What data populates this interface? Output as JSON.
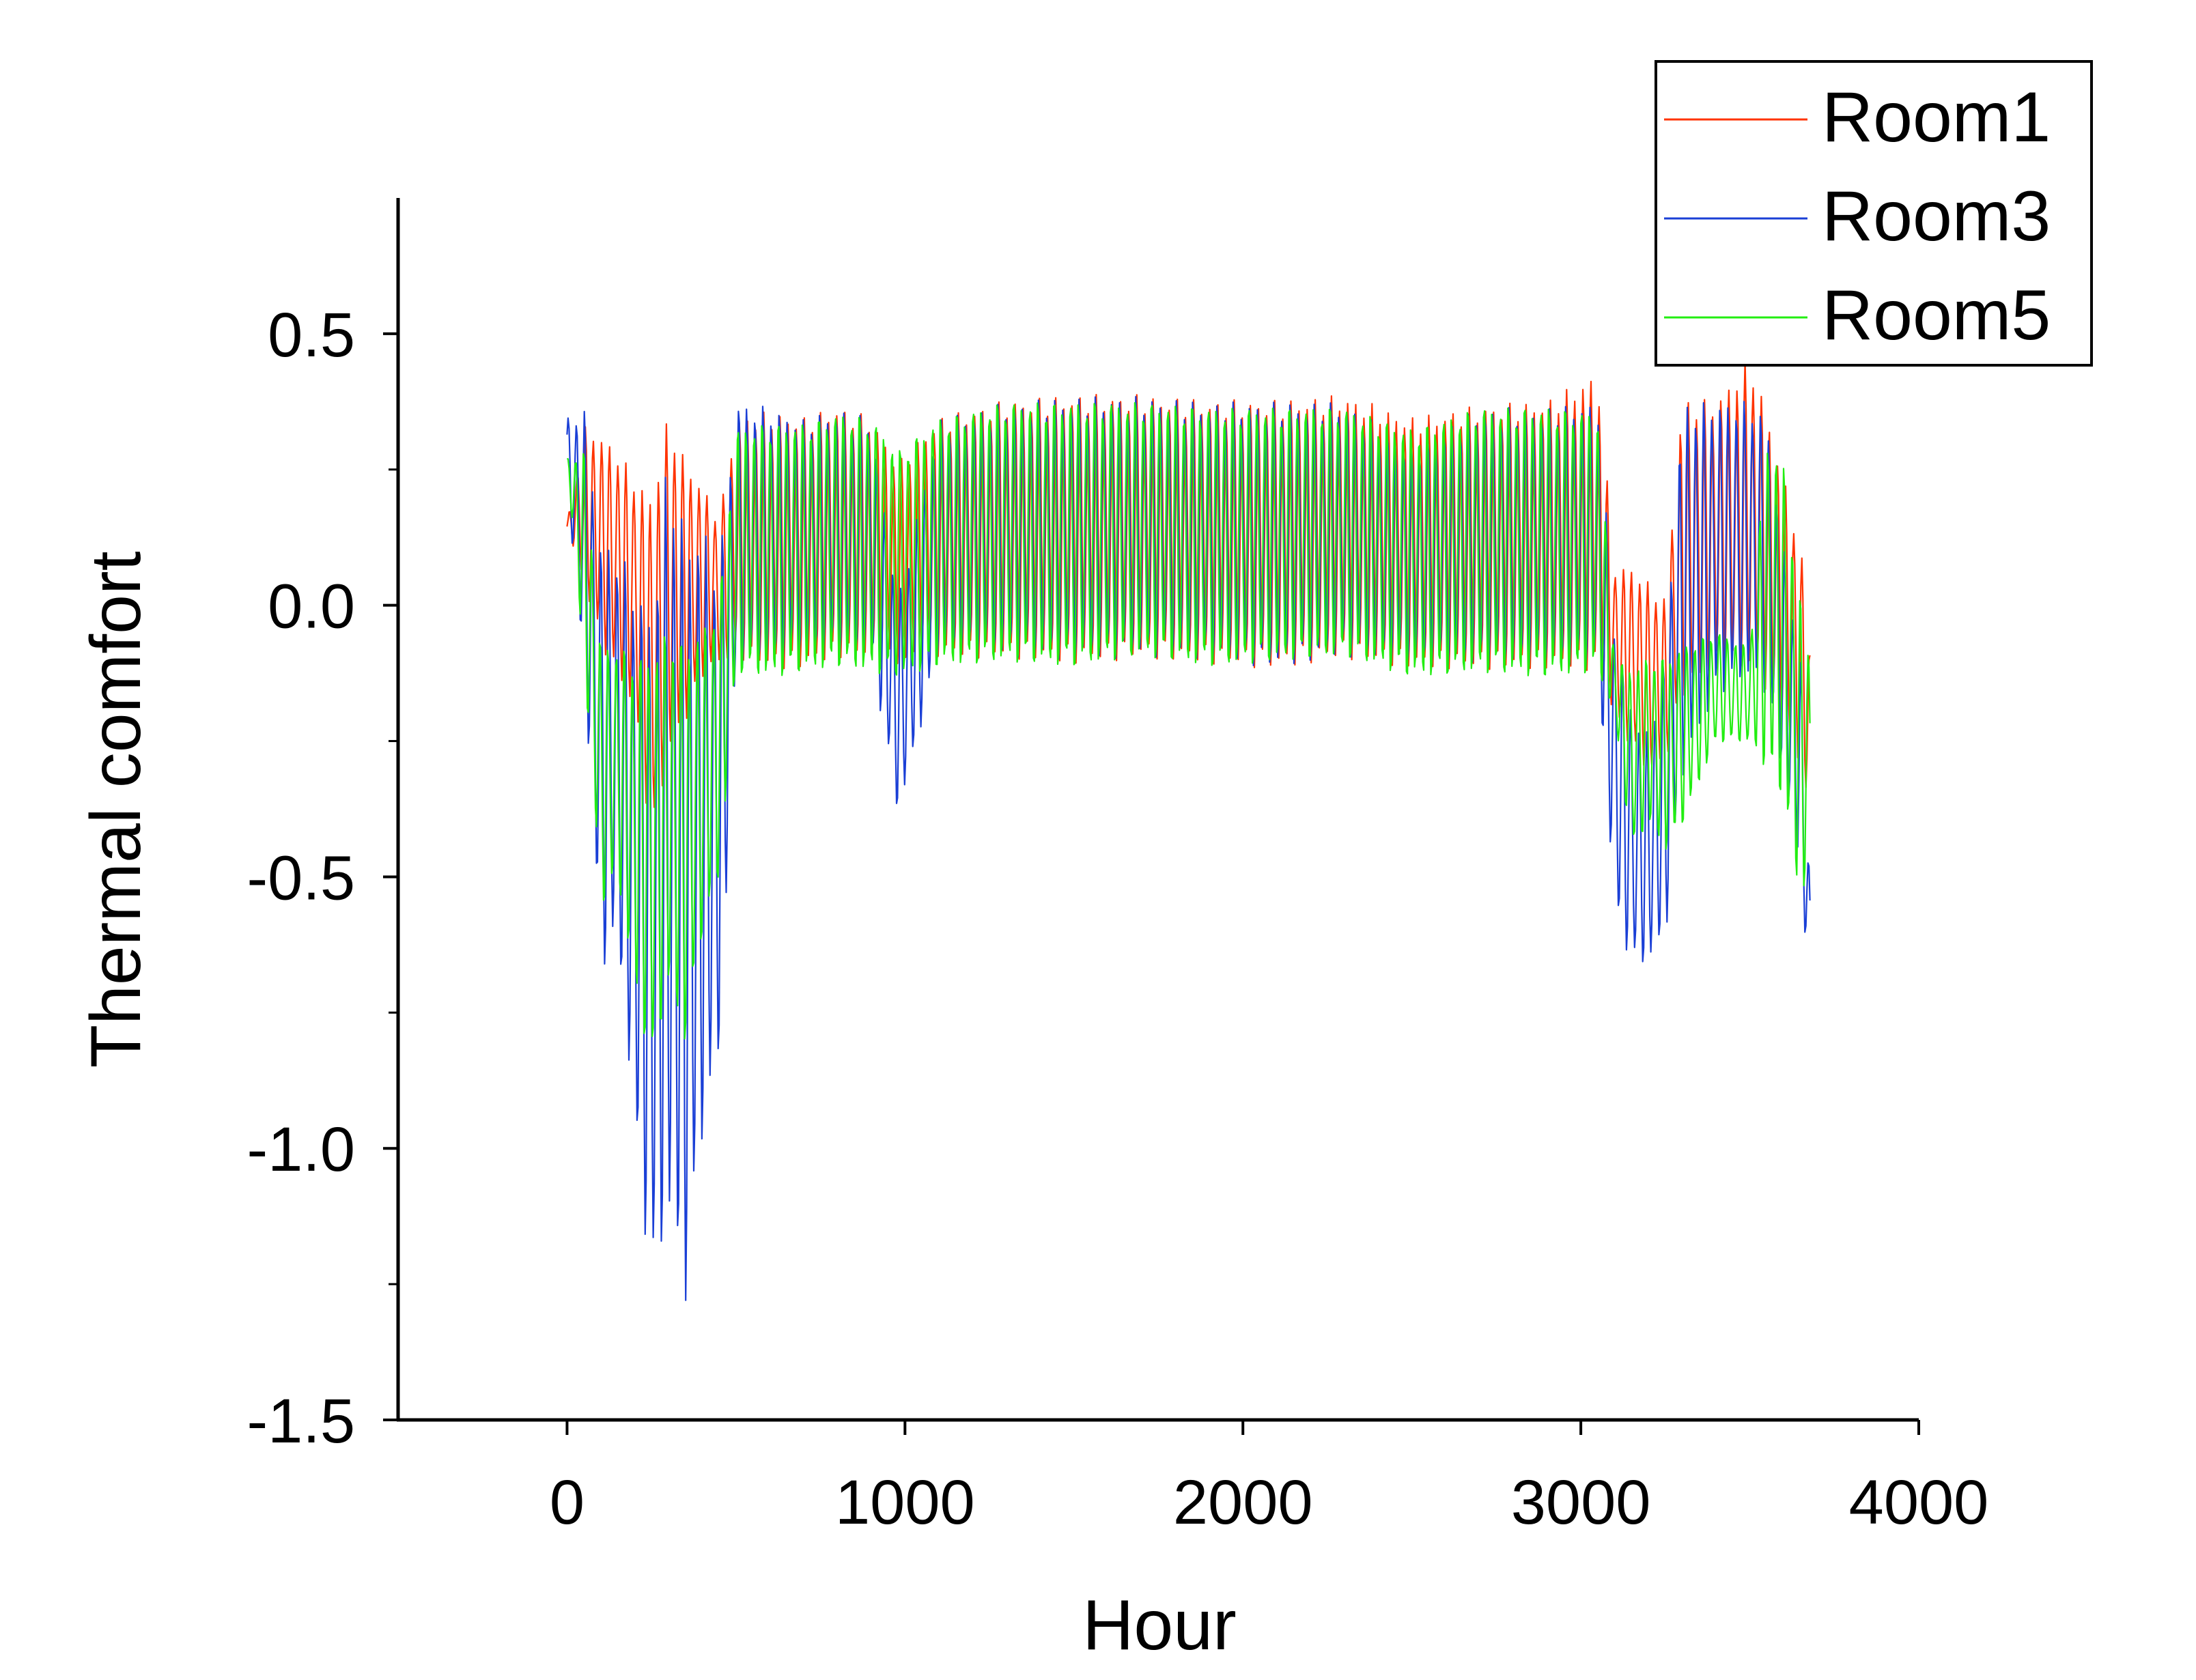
{
  "chart_data": {
    "type": "line",
    "xlabel": "Hour",
    "ylabel": "Thermal comfort",
    "xlim": [
      -500,
      4000
    ],
    "ylim": [
      -1.5,
      0.75
    ],
    "xticks": [
      0,
      1000,
      2000,
      3000,
      4000
    ],
    "xtick_labels": [
      "0",
      "1000",
      "2000",
      "3000",
      "4000"
    ],
    "yticks": [
      -1.5,
      -1.0,
      -0.5,
      0.0,
      0.5
    ],
    "ytick_labels": [
      "-1.5",
      "-1.0",
      "-0.5",
      "0.0",
      "0.5"
    ],
    "legend_position": "top-right",
    "grid": false,
    "series": [
      {
        "name": "Room1",
        "color": "#ff3300",
        "envelope": {
          "x": [
            0,
            50,
            100,
            150,
            200,
            250,
            300,
            350,
            400,
            450,
            500,
            600,
            700,
            800,
            900,
            980,
            1100,
            1300,
            1500,
            1700,
            1900,
            2100,
            2300,
            2500,
            2700,
            2900,
            3050,
            3100,
            3150,
            3200,
            3250,
            3300,
            3400,
            3500,
            3550,
            3600,
            3650,
            3680
          ],
          "high": [
            0.15,
            0.32,
            0.3,
            0.27,
            0.22,
            0.18,
            0.33,
            0.25,
            0.21,
            0.15,
            0.33,
            0.34,
            0.33,
            0.35,
            0.33,
            0.25,
            0.33,
            0.36,
            0.37,
            0.37,
            0.36,
            0.36,
            0.37,
            0.33,
            0.35,
            0.36,
            0.41,
            0.06,
            0.06,
            0.03,
            0.0,
            0.36,
            0.36,
            0.44,
            0.34,
            0.22,
            0.1,
            -0.1
          ],
          "low": [
            0.14,
            0.05,
            -0.06,
            -0.12,
            -0.18,
            -0.42,
            -0.26,
            -0.2,
            -0.12,
            -0.1,
            -0.08,
            -0.1,
            -0.1,
            -0.08,
            -0.08,
            -0.1,
            -0.08,
            -0.08,
            -0.09,
            -0.08,
            -0.09,
            -0.1,
            -0.08,
            -0.1,
            -0.1,
            -0.1,
            -0.1,
            -0.2,
            -0.25,
            -0.3,
            -0.28,
            -0.15,
            -0.1,
            -0.1,
            -0.14,
            -0.2,
            -0.3,
            -0.35
          ]
        }
      },
      {
        "name": "Room3",
        "color": "#1a3fd6",
        "envelope": {
          "x": [
            0,
            50,
            100,
            150,
            200,
            250,
            300,
            350,
            400,
            450,
            500,
            600,
            700,
            800,
            900,
            980,
            1100,
            1300,
            1500,
            1700,
            1900,
            2100,
            2300,
            2500,
            2700,
            2900,
            3050,
            3100,
            3150,
            3200,
            3250,
            3300,
            3400,
            3500,
            3550,
            3600,
            3650,
            3680
          ],
          "high": [
            0.34,
            0.35,
            0.1,
            0.08,
            0.02,
            -0.05,
            0.25,
            0.1,
            0.12,
            0.05,
            0.36,
            0.35,
            0.33,
            0.35,
            0.33,
            0.0,
            0.33,
            0.36,
            0.37,
            0.37,
            0.36,
            0.36,
            0.36,
            0.28,
            0.35,
            0.35,
            0.36,
            -0.05,
            -0.2,
            -0.25,
            -0.1,
            0.35,
            0.36,
            0.36,
            0.33,
            0.1,
            -0.1,
            -0.55
          ],
          "low": [
            0.2,
            -0.1,
            -0.65,
            -0.6,
            -0.95,
            -1.23,
            -1.1,
            -1.25,
            -0.95,
            -0.82,
            -0.1,
            -0.1,
            -0.08,
            -0.08,
            -0.08,
            -0.38,
            -0.08,
            -0.08,
            -0.09,
            -0.08,
            -0.09,
            -0.1,
            -0.08,
            -0.1,
            -0.1,
            -0.1,
            -0.1,
            -0.55,
            -0.65,
            -0.65,
            -0.6,
            -0.3,
            -0.15,
            -0.12,
            -0.15,
            -0.3,
            -0.5,
            -0.72
          ]
        }
      },
      {
        "name": "Room5",
        "color": "#22ee11",
        "envelope": {
          "x": [
            0,
            50,
            100,
            150,
            200,
            250,
            300,
            350,
            400,
            450,
            500,
            600,
            700,
            800,
            900,
            980,
            1100,
            1300,
            1500,
            1700,
            1900,
            2100,
            2300,
            2500,
            2700,
            2900,
            3050,
            3100,
            3150,
            3200,
            3250,
            3300,
            3400,
            3500,
            3550,
            3600,
            3650,
            3680
          ],
          "high": [
            0.27,
            0.28,
            -0.08,
            -0.08,
            -0.1,
            -0.1,
            -0.05,
            -0.08,
            -0.05,
            0.0,
            0.32,
            0.33,
            0.33,
            0.35,
            0.34,
            0.28,
            0.34,
            0.37,
            0.37,
            0.37,
            0.36,
            0.36,
            0.36,
            0.32,
            0.36,
            0.36,
            0.35,
            -0.1,
            -0.12,
            -0.1,
            -0.1,
            -0.08,
            -0.05,
            -0.08,
            0.3,
            0.25,
            0.0,
            -0.1
          ],
          "low": [
            0.26,
            -0.1,
            -0.55,
            -0.5,
            -0.7,
            -0.85,
            -0.7,
            -0.8,
            -0.6,
            -0.5,
            -0.12,
            -0.13,
            -0.12,
            -0.11,
            -0.12,
            -0.13,
            -0.11,
            -0.1,
            -0.11,
            -0.09,
            -0.11,
            -0.1,
            -0.09,
            -0.13,
            -0.12,
            -0.13,
            -0.12,
            -0.2,
            -0.45,
            -0.4,
            -0.45,
            -0.4,
            -0.25,
            -0.25,
            -0.3,
            -0.35,
            -0.55,
            -0.45
          ]
        }
      }
    ]
  }
}
